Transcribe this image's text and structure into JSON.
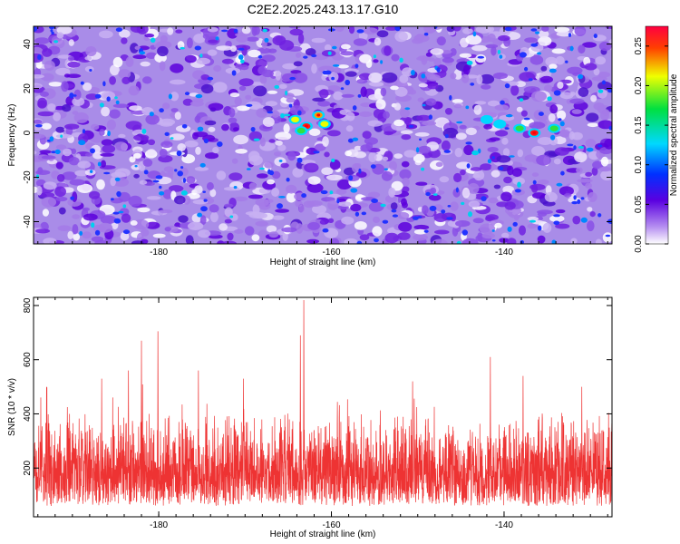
{
  "title": "C2E2.2025.243.13.17.G10",
  "colors": {
    "snr_line": "#ee3333",
    "axis": "#000000",
    "background": "#ffffff"
  },
  "chart_data": [
    {
      "type": "heatmap",
      "title": "C2E2.2025.243.13.17.G10",
      "xlabel": "Height of straight line (km)",
      "ylabel": "Frequency (Hz)",
      "xlim": [
        -194.5,
        -127.5
      ],
      "ylim": [
        -50,
        48
      ],
      "x_ticks": [
        -180,
        -160,
        -140
      ],
      "x_tick_labels": [
        "-180",
        "-160",
        "-140"
      ],
      "y_ticks": [
        -40,
        -20,
        0,
        20,
        40
      ],
      "y_tick_labels": [
        "-40",
        "-20",
        "0",
        "20",
        "40"
      ],
      "colorbar": {
        "label": "Normalized spectral amplitude",
        "range": [
          0.0,
          0.275
        ],
        "ticks": [
          0.0,
          0.05,
          0.1,
          0.15,
          0.2,
          0.25
        ],
        "tick_labels": [
          "0.00",
          "0.05",
          "0.10",
          "0.15",
          "0.20",
          "0.25"
        ],
        "colormap": "rainbow (white-violet-blue-cyan-green-yellow-red)"
      },
      "hotspots": [
        {
          "x": -162.9,
          "y": 3,
          "value": 0.26
        },
        {
          "x": -161.5,
          "y": 8,
          "value": 0.22
        },
        {
          "x": -164.2,
          "y": 6,
          "value": 0.16
        },
        {
          "x": -160.8,
          "y": 4,
          "value": 0.18
        },
        {
          "x": -163.5,
          "y": 1,
          "value": 0.14
        },
        {
          "x": -136.5,
          "y": 0,
          "value": 0.24
        },
        {
          "x": -138.2,
          "y": 2,
          "value": 0.14
        },
        {
          "x": -140.5,
          "y": 4,
          "value": 0.12
        },
        {
          "x": -134.2,
          "y": 2,
          "value": 0.13
        },
        {
          "x": -142.0,
          "y": 6,
          "value": 0.1
        }
      ]
    },
    {
      "type": "line",
      "xlabel": "Height of straight line (km)",
      "ylabel": "SNR (10 * v/v)",
      "xlim": [
        -194.5,
        -127.5
      ],
      "ylim": [
        20,
        830
      ],
      "x_ticks": [
        -180,
        -160,
        -140
      ],
      "x_tick_labels": [
        "-180",
        "-160",
        "-140"
      ],
      "y_ticks": [
        200,
        400,
        600,
        800
      ],
      "y_tick_labels": [
        "200",
        "400",
        "600",
        "800"
      ],
      "baseline": {
        "low": 60,
        "typical": 200,
        "upper_band": 420
      },
      "peaks": [
        {
          "x": -163.2,
          "y": 820
        },
        {
          "x": -163.6,
          "y": 690
        },
        {
          "x": -180.1,
          "y": 705
        },
        {
          "x": -182.0,
          "y": 670
        },
        {
          "x": -141.6,
          "y": 610
        },
        {
          "x": -175.4,
          "y": 560
        },
        {
          "x": -183.5,
          "y": 560
        },
        {
          "x": -170.2,
          "y": 530
        },
        {
          "x": -150.6,
          "y": 520
        },
        {
          "x": -137.8,
          "y": 540
        },
        {
          "x": -131.0,
          "y": 500
        },
        {
          "x": -186.6,
          "y": 530
        },
        {
          "x": -193.0,
          "y": 500
        }
      ]
    }
  ]
}
